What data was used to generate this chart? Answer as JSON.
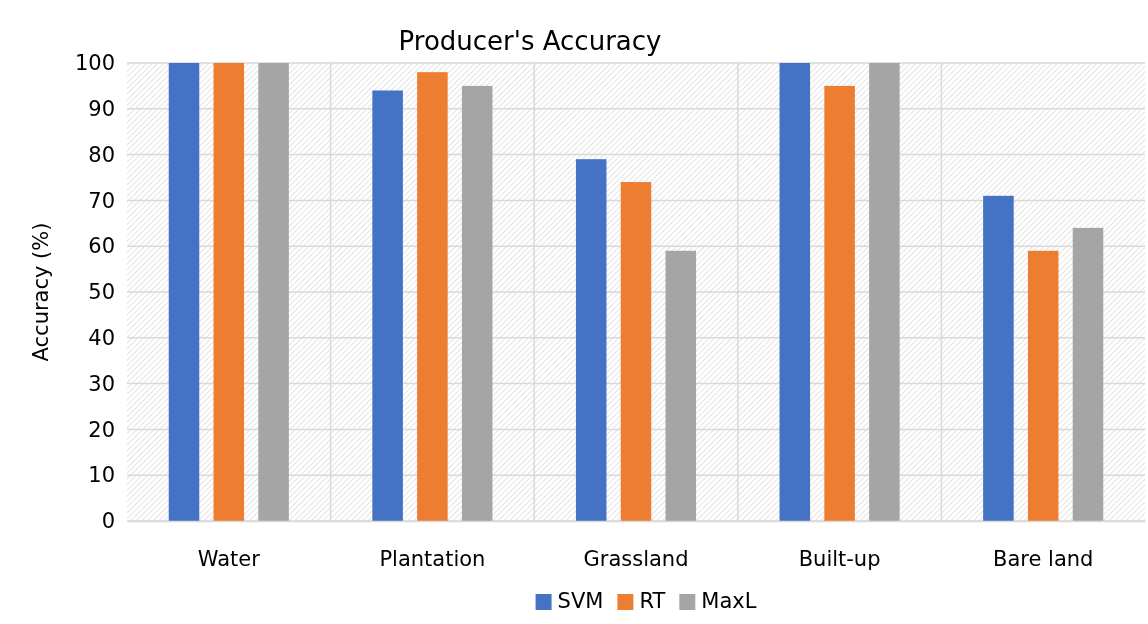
{
  "chart_data": {
    "type": "bar",
    "title": "Producer's Accuracy",
    "ylabel": "Accuracy (%)",
    "categories": [
      "Water",
      "Plantation",
      "Grassland",
      "Built-up",
      "Bare land"
    ],
    "series": [
      {
        "name": "SVM",
        "color": "#4472c4",
        "values": [
          100,
          94,
          79,
          100,
          71
        ]
      },
      {
        "name": "RT",
        "color": "#ed7d31",
        "values": [
          100,
          98,
          74,
          95,
          59
        ]
      },
      {
        "name": "MaxL",
        "color": "#a5a5a5",
        "values": [
          100,
          95,
          59,
          100,
          64
        ]
      }
    ],
    "ylim": [
      0,
      100
    ],
    "yticks": [
      0,
      10,
      20,
      30,
      40,
      50,
      60,
      70,
      80,
      90,
      100
    ],
    "grid": true,
    "legend": "bottom"
  }
}
